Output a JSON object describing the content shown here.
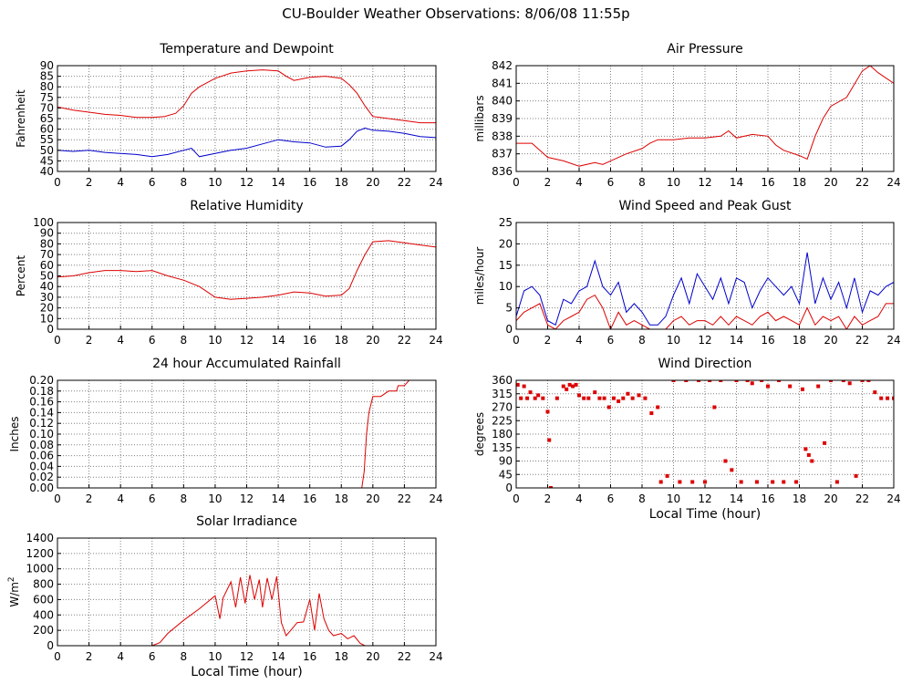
{
  "page_title": "CU-Boulder Weather Observations: 8/06/08 11:55p",
  "chart_data": [
    {
      "id": "temperature",
      "type": "line",
      "title": "Temperature and Dewpoint",
      "ylabel": "Fahrenheit",
      "xlabel": "",
      "xlim": [
        0,
        24
      ],
      "ylim": [
        40,
        90
      ],
      "xticks": [
        0,
        2,
        4,
        6,
        8,
        10,
        12,
        14,
        16,
        18,
        20,
        22,
        24
      ],
      "yticks": [
        "40",
        "45",
        "50",
        "55",
        "60",
        "65",
        "70",
        "75",
        "80",
        "85",
        "90"
      ],
      "grid": true,
      "series": [
        {
          "color": "#dd0000",
          "x": [
            0,
            1,
            2,
            3,
            4,
            5,
            6,
            6.8,
            7.5,
            8,
            8.5,
            9,
            9.5,
            10,
            11,
            12,
            13,
            14,
            14.5,
            15,
            16,
            17,
            18,
            18.5,
            19,
            19.5,
            20,
            21,
            22,
            23,
            24
          ],
          "y": [
            70.5,
            69,
            68,
            67,
            66.5,
            65.5,
            65.5,
            66,
            67.5,
            71,
            77,
            80,
            82,
            84,
            86.5,
            87.5,
            88,
            87.5,
            85,
            83,
            84.5,
            85,
            84,
            81,
            77,
            71,
            66,
            65,
            64,
            63,
            63
          ]
        },
        {
          "color": "#0000cc",
          "x": [
            0,
            1,
            2,
            3,
            4,
            5,
            6,
            7,
            8,
            8.5,
            9,
            10,
            11,
            12,
            13,
            14,
            15,
            16,
            17,
            18,
            18.5,
            19,
            19.5,
            20,
            21,
            22,
            23,
            24
          ],
          "y": [
            50,
            49.5,
            50,
            49,
            48.5,
            48,
            47,
            48,
            50,
            51,
            47,
            48.5,
            50,
            51,
            53,
            55,
            54,
            53.5,
            51.5,
            52,
            55,
            59,
            60.5,
            59.5,
            59,
            58,
            56.5,
            56
          ]
        }
      ]
    },
    {
      "id": "pressure",
      "type": "line",
      "title": "Air Pressure",
      "ylabel": "millibars",
      "xlabel": "",
      "xlim": [
        0,
        24
      ],
      "ylim": [
        836,
        842
      ],
      "xticks": [
        0,
        2,
        4,
        6,
        8,
        10,
        12,
        14,
        16,
        18,
        20,
        22,
        24
      ],
      "yticks": [
        "836",
        "837",
        "838",
        "839",
        "840",
        "841",
        "842"
      ],
      "grid": true,
      "series": [
        {
          "color": "#dd0000",
          "x": [
            0,
            1,
            1.5,
            2,
            3,
            4,
            5,
            5.5,
            6,
            7,
            8,
            8.5,
            9,
            10,
            11,
            12,
            13,
            13.5,
            14,
            15,
            16,
            16.5,
            17,
            18,
            18.5,
            19,
            19.5,
            20,
            21,
            22,
            22.5,
            23,
            24
          ],
          "y": [
            837.6,
            837.6,
            837.2,
            836.8,
            836.6,
            836.3,
            836.5,
            836.4,
            836.6,
            837,
            837.3,
            837.6,
            837.8,
            837.8,
            837.9,
            837.9,
            838,
            838.3,
            837.9,
            838.1,
            838,
            837.5,
            837.2,
            836.9,
            836.7,
            838,
            839,
            839.7,
            840.2,
            841.7,
            842,
            841.6,
            841
          ]
        }
      ]
    },
    {
      "id": "humidity",
      "type": "line",
      "title": "Relative Humidity",
      "ylabel": "Percent",
      "xlabel": "",
      "xlim": [
        0,
        24
      ],
      "ylim": [
        0,
        100
      ],
      "xticks": [
        0,
        2,
        4,
        6,
        8,
        10,
        12,
        14,
        16,
        18,
        20,
        22,
        24
      ],
      "yticks": [
        "0",
        "10",
        "20",
        "30",
        "40",
        "50",
        "60",
        "70",
        "80",
        "90",
        "100"
      ],
      "grid": true,
      "series": [
        {
          "color": "#dd0000",
          "x": [
            0,
            1,
            2,
            3,
            4,
            5,
            6,
            7,
            8,
            9,
            9.5,
            10,
            11,
            12,
            13,
            14,
            15,
            16,
            17,
            18,
            18.5,
            19,
            19.5,
            20,
            21,
            22,
            23,
            24
          ],
          "y": [
            49,
            50,
            53,
            55,
            55,
            54,
            55,
            50,
            46,
            40,
            35,
            30,
            28,
            29,
            30,
            32,
            35,
            34,
            31,
            32,
            38,
            55,
            70,
            82,
            83,
            81,
            79,
            77
          ]
        }
      ]
    },
    {
      "id": "wind-speed",
      "type": "line",
      "title": "Wind Speed and Peak Gust",
      "ylabel": "miles/hour",
      "xlabel": "",
      "xlim": [
        0,
        24
      ],
      "ylim": [
        0,
        25
      ],
      "xticks": [
        0,
        2,
        4,
        6,
        8,
        10,
        12,
        14,
        16,
        18,
        20,
        22,
        24
      ],
      "yticks": [
        "0",
        "5",
        "10",
        "15",
        "20",
        "25"
      ],
      "grid": true,
      "series": [
        {
          "color": "#0000cc",
          "x": [
            0,
            0.5,
            1,
            1.5,
            2,
            2.5,
            3,
            3.5,
            4,
            4.5,
            5,
            5.5,
            6,
            6.5,
            7,
            7.5,
            8,
            8.5,
            9,
            9.5,
            10,
            10.5,
            11,
            11.5,
            12,
            12.5,
            13,
            13.5,
            14,
            14.5,
            15,
            15.5,
            16,
            16.5,
            17,
            17.5,
            18,
            18.5,
            19,
            19.5,
            20,
            20.5,
            21,
            21.5,
            22,
            22.5,
            23,
            23.5,
            24
          ],
          "y": [
            3,
            9,
            10,
            8,
            2,
            1,
            7,
            6,
            9,
            10,
            16,
            10,
            8,
            11,
            4,
            6,
            4,
            1,
            1,
            3,
            8,
            12,
            6,
            13,
            10,
            7,
            12,
            6,
            12,
            11,
            5,
            9,
            12,
            10,
            8,
            10,
            6,
            18,
            6,
            12,
            7,
            11,
            5,
            12,
            4,
            9,
            8,
            10,
            11
          ]
        },
        {
          "color": "#dd0000",
          "x": [
            0,
            0.5,
            1,
            1.5,
            2,
            2.5,
            3,
            3.5,
            4,
            4.5,
            5,
            5.5,
            6,
            6.5,
            7,
            7.5,
            8,
            8.5,
            9,
            9.5,
            10,
            10.5,
            11,
            11.5,
            12,
            12.5,
            13,
            13.5,
            14,
            14.5,
            15,
            15.5,
            16,
            16.5,
            17,
            17.5,
            18,
            18.5,
            19,
            19.5,
            20,
            20.5,
            21,
            21.5,
            22,
            22.5,
            23,
            23.5,
            24
          ],
          "y": [
            2,
            4,
            5,
            6,
            1,
            0,
            2,
            3,
            4,
            7,
            8,
            5,
            0,
            4,
            1,
            2,
            1,
            0,
            0,
            0,
            2,
            3,
            1,
            2,
            2,
            1,
            3,
            1,
            3,
            2,
            1,
            3,
            4,
            2,
            3,
            2,
            1,
            5,
            1,
            3,
            2,
            3,
            0,
            3,
            1,
            2,
            3,
            6,
            6
          ]
        }
      ]
    },
    {
      "id": "rainfall",
      "type": "line",
      "title": "24 hour Accumulated Rainfall",
      "ylabel": "Inches",
      "xlabel": "",
      "xlim": [
        0,
        24
      ],
      "ylim": [
        0,
        0.2
      ],
      "xticks": [
        0,
        2,
        4,
        6,
        8,
        10,
        12,
        14,
        16,
        18,
        20,
        22,
        24
      ],
      "yticks": [
        "0.00",
        "0.02",
        "0.04",
        "0.06",
        "0.08",
        "0.10",
        "0.12",
        "0.14",
        "0.16",
        "0.18",
        "0.20"
      ],
      "grid": true,
      "series": [
        {
          "color": "#dd0000",
          "x": [
            0,
            19.3,
            19.45,
            19.6,
            19.75,
            20,
            20.5,
            21,
            21.5,
            21.6,
            22,
            22.3,
            24
          ],
          "y": [
            0,
            0,
            0.03,
            0.1,
            0.14,
            0.17,
            0.17,
            0.18,
            0.18,
            0.19,
            0.19,
            0.2,
            0.2
          ]
        }
      ]
    },
    {
      "id": "wind-direction",
      "type": "scatter",
      "title": "Wind Direction",
      "ylabel": "degrees",
      "xlabel": "Local Time (hour)",
      "xlim": [
        0,
        24
      ],
      "ylim": [
        0,
        360
      ],
      "xticks": [
        0,
        2,
        4,
        6,
        8,
        10,
        12,
        14,
        16,
        18,
        20,
        22,
        24
      ],
      "yticks": [
        "0",
        "45",
        "90",
        "135",
        "180",
        "225",
        "270",
        "315",
        "360"
      ],
      "grid": true,
      "series": [
        {
          "color": "#dd0000",
          "x": [
            0.1,
            0.3,
            0.5,
            0.7,
            0.9,
            1.2,
            1.4,
            1.7,
            2,
            2.1,
            2.2,
            2.6,
            3,
            3.2,
            3.4,
            3.6,
            3.8,
            4,
            4.3,
            4.6,
            5,
            5.3,
            5.6,
            5.9,
            6.2,
            6.5,
            6.8,
            7.1,
            7.4,
            7.8,
            8.2,
            8.6,
            9,
            9.2,
            9.6,
            10,
            10.4,
            10.8,
            11.2,
            11.6,
            12,
            12.3,
            12.6,
            13,
            13.3,
            13.7,
            14,
            14.3,
            14.7,
            15,
            15.3,
            15.6,
            16,
            16.3,
            16.7,
            17,
            17.4,
            17.8,
            18.2,
            18.4,
            18.6,
            18.8,
            19.2,
            19.6,
            20,
            20.4,
            20.8,
            21.2,
            21.6,
            22,
            22.4,
            22.8,
            23.2,
            23.6,
            24
          ],
          "y": [
            345,
            300,
            340,
            300,
            320,
            300,
            310,
            300,
            255,
            160,
            0,
            300,
            340,
            330,
            345,
            340,
            345,
            310,
            300,
            300,
            320,
            300,
            300,
            270,
            300,
            290,
            300,
            315,
            300,
            310,
            300,
            250,
            270,
            20,
            40,
            360,
            20,
            360,
            20,
            360,
            20,
            360,
            270,
            360,
            90,
            60,
            360,
            20,
            360,
            350,
            20,
            360,
            340,
            20,
            360,
            20,
            340,
            20,
            330,
            130,
            110,
            90,
            340,
            150,
            360,
            20,
            360,
            350,
            40,
            360,
            360,
            320,
            300,
            300,
            300
          ]
        }
      ]
    },
    {
      "id": "solar",
      "type": "line",
      "title": "Solar Irradiance",
      "ylabel": "W/m",
      "ylabel_sup": "2",
      "xlabel": "Local Time (hour)",
      "xlim": [
        0,
        24
      ],
      "ylim": [
        0,
        1400
      ],
      "xticks": [
        0,
        2,
        4,
        6,
        8,
        10,
        12,
        14,
        16,
        18,
        20,
        22,
        24
      ],
      "yticks": [
        "0",
        "200",
        "400",
        "600",
        "800",
        "1000",
        "1200",
        "1400"
      ],
      "grid": true,
      "series": [
        {
          "color": "#dd0000",
          "x": [
            0,
            6,
            6.5,
            7,
            8,
            9,
            10,
            10.3,
            10.5,
            11,
            11.3,
            11.6,
            11.9,
            12.2,
            12.5,
            12.8,
            13,
            13.3,
            13.6,
            13.9,
            14.2,
            14.5,
            14.8,
            15.2,
            15.6,
            16,
            16.3,
            16.6,
            16.9,
            17.2,
            17.5,
            18,
            18.4,
            18.8,
            19.2,
            19.5,
            24
          ],
          "y": [
            0,
            0,
            40,
            160,
            330,
            480,
            650,
            350,
            620,
            830,
            500,
            890,
            550,
            920,
            600,
            860,
            500,
            880,
            600,
            900,
            300,
            130,
            200,
            300,
            310,
            600,
            200,
            680,
            350,
            200,
            130,
            160,
            90,
            130,
            30,
            0,
            0
          ]
        }
      ]
    }
  ]
}
